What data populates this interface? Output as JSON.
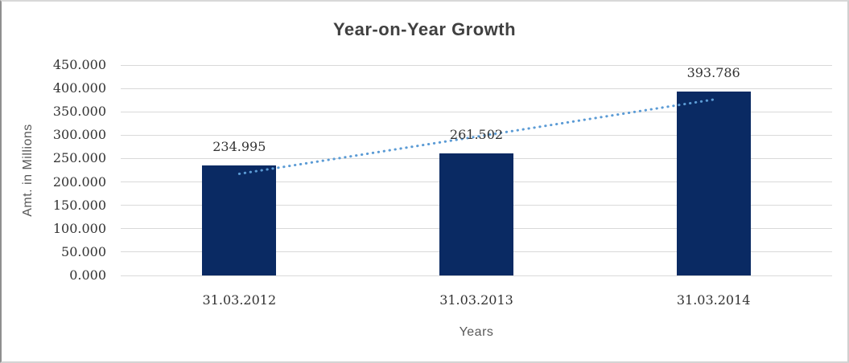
{
  "chart_data": {
    "type": "bar",
    "title": "Year-on-Year Growth",
    "xlabel": "Years",
    "ylabel": "Amt. in Millions",
    "categories": [
      "31.03.2012",
      "31.03.2013",
      "31.03.2014"
    ],
    "values": [
      234.995,
      261.502,
      393.786
    ],
    "value_labels": [
      "234.995",
      "261.502",
      "393.786"
    ],
    "ylim": [
      0,
      450
    ],
    "ytick_step": 50,
    "ytick_labels": [
      "0.000",
      "50.000",
      "100.000",
      "150.000",
      "200.000",
      "250.000",
      "300.000",
      "350.000",
      "400.000",
      "450.000"
    ],
    "grid": true,
    "legend": "none",
    "trendline": {
      "type": "linear",
      "style": "dotted",
      "endpoint_values": [
        217.4,
        376.2
      ]
    },
    "colors": {
      "bar": "#0a2a63",
      "trend": "#5b9bd5",
      "gridline": "#d9d9d9",
      "title_text": "#404040",
      "tick_text": "#333333",
      "axis_title_text": "#595959",
      "background": "#ffffff"
    }
  }
}
